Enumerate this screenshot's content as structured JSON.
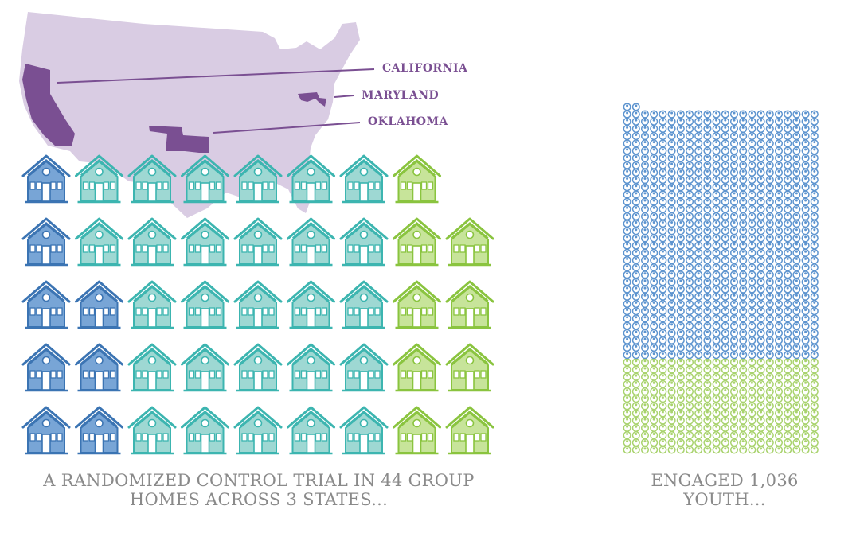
{
  "map": {
    "states": [
      {
        "label": "CALIFORNIA"
      },
      {
        "label": "MARYLAND"
      },
      {
        "label": "OKLAHOMA"
      }
    ],
    "colors": {
      "land": "#d9cce3",
      "highlight": "#7a4f92"
    }
  },
  "homes": {
    "rows": [
      [
        "blue",
        "teal",
        "teal",
        "teal",
        "teal",
        "teal",
        "teal",
        "green"
      ],
      [
        "blue",
        "teal",
        "teal",
        "teal",
        "teal",
        "teal",
        "teal",
        "green",
        "green"
      ],
      [
        "blue",
        "blue",
        "teal",
        "teal",
        "teal",
        "teal",
        "teal",
        "green",
        "green"
      ],
      [
        "blue",
        "blue",
        "teal",
        "teal",
        "teal",
        "teal",
        "teal",
        "green",
        "green"
      ],
      [
        "blue",
        "blue",
        "teal",
        "teal",
        "teal",
        "teal",
        "teal",
        "green",
        "green"
      ]
    ],
    "colors": {
      "blue": {
        "stroke": "#3b74b3",
        "fill": "#78a5d6"
      },
      "teal": {
        "stroke": "#3cb5b0",
        "fill": "#9ed8d3"
      },
      "green": {
        "stroke": "#8ac43f",
        "fill": "#c7e49a"
      }
    },
    "caption_line1": "A RANDOMIZED CONTROL TRIAL IN 44 GROUP",
    "caption_line2": "HOMES ACROSS 3 STATES..."
  },
  "youth": {
    "total": 1036,
    "colors": {
      "blue": "#5d94cf",
      "green": "#a9d36e"
    },
    "caption_line1": "ENGAGED 1,036",
    "caption_line2": "YOUTH..."
  }
}
